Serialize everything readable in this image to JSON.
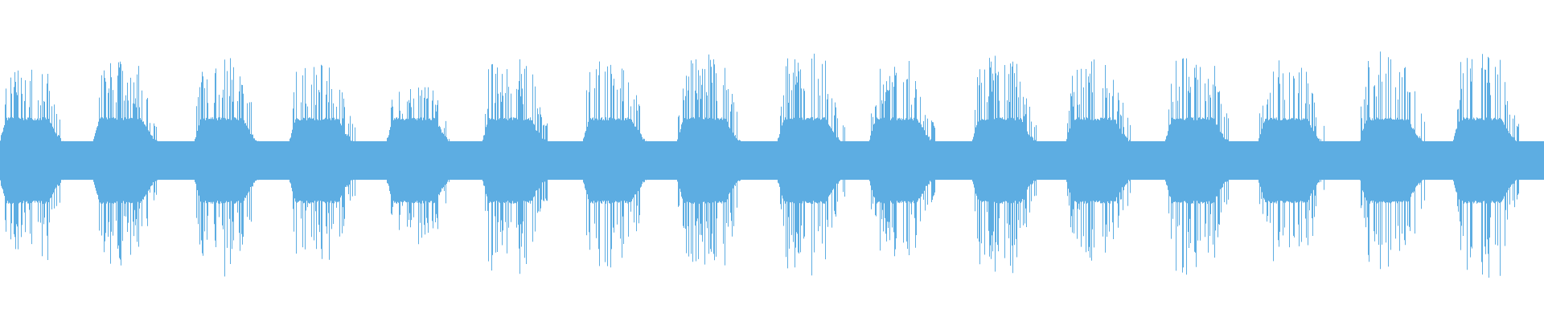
{
  "waveform": {
    "color": "#5dade2",
    "background": "#ffffff",
    "burst_count": 16
  }
}
